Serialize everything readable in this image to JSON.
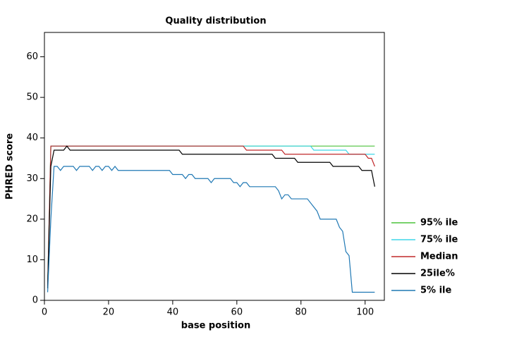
{
  "chart_data": {
    "type": "line",
    "title": "Quality distribution",
    "x_label": "base position",
    "y_label": "PHRED score",
    "xlim": [
      0,
      106
    ],
    "ylim": [
      0,
      66
    ],
    "xticks": [
      0,
      20,
      40,
      60,
      80,
      100
    ],
    "yticks": [
      0,
      10,
      20,
      30,
      40,
      50,
      60
    ],
    "series": [
      {
        "name": "95% ile",
        "color": "#4cc43c",
        "x": [
          1,
          2,
          103
        ],
        "values": [
          3,
          38,
          38
        ]
      },
      {
        "name": "75% ile",
        "color": "#3fd6e8",
        "x": [
          1,
          2,
          83,
          84,
          94,
          95,
          103
        ],
        "values": [
          3,
          38,
          38,
          37,
          37,
          36,
          36
        ]
      },
      {
        "name": "Median",
        "color": "#c0282a",
        "x": [
          1,
          2,
          62,
          63,
          74,
          75,
          100,
          101,
          102,
          103
        ],
        "values": [
          3,
          38,
          38,
          37,
          37,
          36,
          36,
          35,
          35,
          33
        ]
      },
      {
        "name": "25ile%",
        "color": "#000000",
        "x": [
          1,
          2,
          3,
          6,
          7,
          8,
          42,
          43,
          71,
          72,
          78,
          79,
          89,
          90,
          98,
          99,
          102,
          103
        ],
        "values": [
          3,
          33,
          37,
          37,
          38,
          37,
          37,
          36,
          36,
          35,
          35,
          34,
          34,
          33,
          33,
          32,
          32,
          28
        ]
      },
      {
        "name": "5% ile",
        "color": "#1f78b4",
        "x": [
          1,
          2,
          3,
          4,
          5,
          6,
          9,
          10,
          11,
          14,
          15,
          16,
          17,
          18,
          19,
          20,
          21,
          22,
          23,
          39,
          40,
          43,
          44,
          45,
          46,
          47,
          51,
          52,
          53,
          58,
          59,
          60,
          61,
          62,
          63,
          64,
          72,
          73,
          74,
          75,
          76,
          77,
          82,
          84,
          85,
          86,
          91,
          92,
          93,
          94,
          95,
          96,
          103
        ],
        "values": [
          2,
          20,
          33,
          33,
          32,
          33,
          33,
          32,
          33,
          33,
          32,
          33,
          33,
          32,
          33,
          33,
          32,
          33,
          32,
          32,
          31,
          31,
          30,
          31,
          31,
          30,
          30,
          29,
          30,
          30,
          29,
          29,
          28,
          29,
          29,
          28,
          28,
          27,
          25,
          26,
          26,
          25,
          25,
          23,
          22,
          20,
          20,
          18,
          17,
          12,
          11,
          2,
          2
        ]
      }
    ]
  }
}
